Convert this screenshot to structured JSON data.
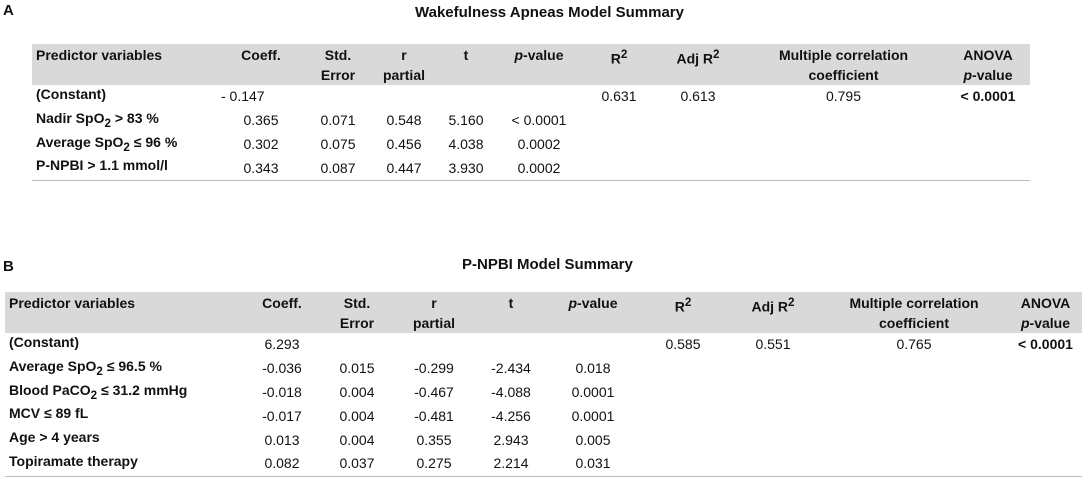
{
  "panel_a": {
    "letter": "A",
    "title": "Wakefulness Apneas Model Summary",
    "header": {
      "predictor": "Predictor variables",
      "coeff": "Coeff.",
      "std_error_1": "Std.",
      "std_error_2": "Error",
      "r_partial_1": "r",
      "r_partial_2": "partial",
      "t": "t",
      "p_value_italic": "p",
      "p_value_rest": "-value",
      "r2_base": "R",
      "r2_sup": "2",
      "adj_r2_base": "Adj R",
      "adj_r2_sup": "2",
      "mult_corr_1": "Multiple correlation",
      "mult_corr_2": "coefficient",
      "anova_1": "ANOVA",
      "anova_2_italic": "p",
      "anova_2_rest": "-value"
    },
    "rows": [
      {
        "predictor_base": "(Constant)",
        "predictor_sub": "",
        "predictor_rest": "",
        "coeff": "-   0.147",
        "std_error": "",
        "r_partial": "",
        "t": "",
        "p_value": "",
        "r2": "0.631",
        "adj_r2": "0.613",
        "mult_corr": "0.795",
        "anova_p": "< 0.0001"
      },
      {
        "predictor_base": "Nadir SpO",
        "predictor_sub": "2",
        "predictor_rest": " > 83 %",
        "coeff": "0.365",
        "std_error": "0.071",
        "r_partial": "0.548",
        "t": "5.160",
        "p_value": "< 0.0001",
        "r2": "",
        "adj_r2": "",
        "mult_corr": "",
        "anova_p": ""
      },
      {
        "predictor_base": "Average SpO",
        "predictor_sub": "2",
        "predictor_rest": " ≤ 96 %",
        "coeff": "0.302",
        "std_error": "0.075",
        "r_partial": "0.456",
        "t": "4.038",
        "p_value": "0.0002",
        "r2": "",
        "adj_r2": "",
        "mult_corr": "",
        "anova_p": ""
      },
      {
        "predictor_base": "P-NPBI > 1.1 mmol/l",
        "predictor_sub": "",
        "predictor_rest": "",
        "coeff": "0.343",
        "std_error": "0.087",
        "r_partial": "0.447",
        "t": "3.930",
        "p_value": "0.0002",
        "r2": "",
        "adj_r2": "",
        "mult_corr": "",
        "anova_p": ""
      }
    ]
  },
  "panel_b": {
    "letter": "B",
    "title": "P-NPBI Model Summary",
    "header": {
      "predictor": "Predictor variables",
      "coeff": "Coeff.",
      "std_error_1": "Std.",
      "std_error_2": "Error",
      "r_partial_1": "r",
      "r_partial_2": "partial",
      "t": "t",
      "p_value_italic": "p",
      "p_value_rest": "-value",
      "r2_base": "R",
      "r2_sup": "2",
      "adj_r2_base": "Adj R",
      "adj_r2_sup": "2",
      "mult_corr_1": "Multiple correlation",
      "mult_corr_2": "coefficient",
      "anova_1": "ANOVA",
      "anova_2_italic": "p",
      "anova_2_rest": "-value"
    },
    "rows": [
      {
        "predictor_base": "(Constant)",
        "predictor_sub": "",
        "predictor_rest": "",
        "coeff": "6.293",
        "std_error": "",
        "r_partial": "",
        "t": "",
        "p_value": "",
        "r2": "0.585",
        "adj_r2": "0.551",
        "mult_corr": "0.765",
        "anova_p": "< 0.0001"
      },
      {
        "predictor_base": "Average SpO",
        "predictor_sub": "2",
        "predictor_rest": " ≤ 96.5 %",
        "coeff": "-0.036",
        "std_error": "0.015",
        "r_partial": "-0.299",
        "t": "-2.434",
        "p_value": "0.018",
        "r2": "",
        "adj_r2": "",
        "mult_corr": "",
        "anova_p": ""
      },
      {
        "predictor_base": "Blood PaCO",
        "predictor_sub": "2",
        "predictor_rest": " ≤ 31.2 mmHg",
        "coeff": "-0.018",
        "std_error": "0.004",
        "r_partial": "-0.467",
        "t": "-4.088",
        "p_value": "0.0001",
        "r2": "",
        "adj_r2": "",
        "mult_corr": "",
        "anova_p": ""
      },
      {
        "predictor_base": "MCV  ≤ 89 fL",
        "predictor_sub": "",
        "predictor_rest": "",
        "coeff": "-0.017",
        "std_error": "0.004",
        "r_partial": "-0.481",
        "t": "-4.256",
        "p_value": "0.0001",
        "r2": "",
        "adj_r2": "",
        "mult_corr": "",
        "anova_p": ""
      },
      {
        "predictor_base": "Age > 4 years",
        "predictor_sub": "",
        "predictor_rest": "",
        "coeff": "0.013",
        "std_error": "0.004",
        "r_partial": "0.355",
        "t": "2.943",
        "p_value": "0.005",
        "r2": "",
        "adj_r2": "",
        "mult_corr": "",
        "anova_p": ""
      },
      {
        "predictor_base": "Topiramate therapy",
        "predictor_sub": "",
        "predictor_rest": "",
        "coeff": "0.082",
        "std_error": "0.037",
        "r_partial": "0.275",
        "t": "2.214",
        "p_value": "0.031",
        "r2": "",
        "adj_r2": "",
        "mult_corr": "",
        "anova_p": ""
      }
    ]
  }
}
